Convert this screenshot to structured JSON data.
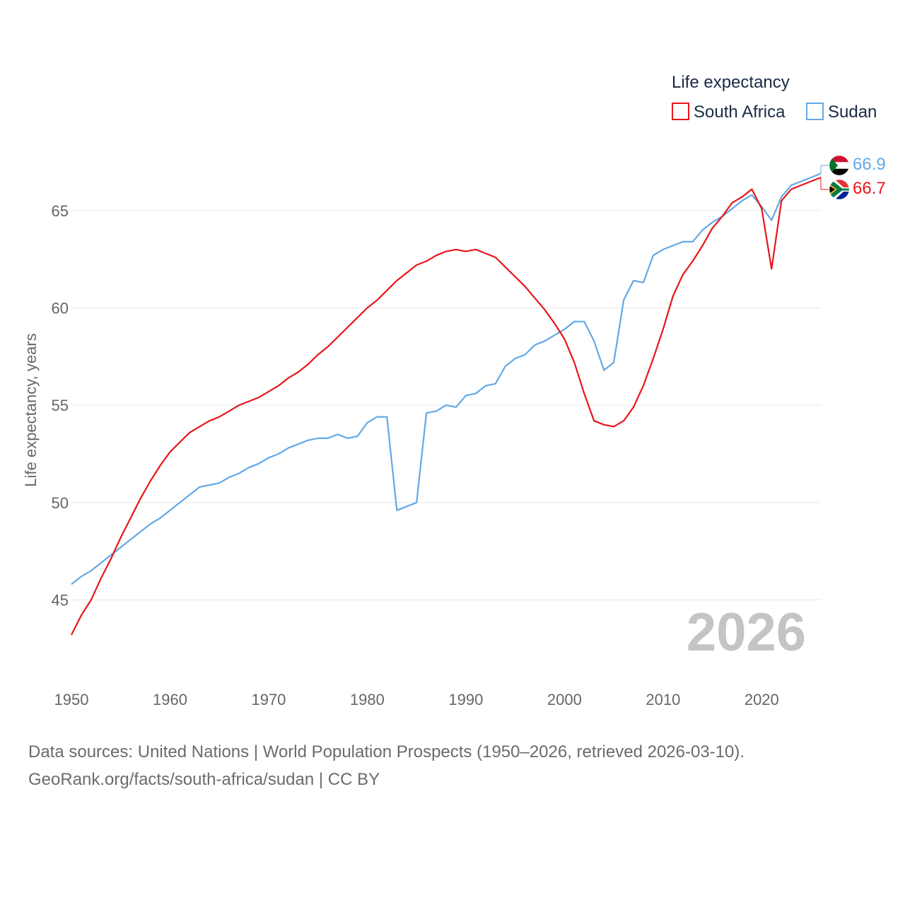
{
  "chart_data": {
    "type": "line",
    "legend_title": "Life expectancy",
    "ylabel": "Life expectancy, years",
    "xlabel": "",
    "xlim": [
      1950,
      2026
    ],
    "ylim": [
      42.4,
      67.9
    ],
    "x_ticks": [
      1950,
      1960,
      1970,
      1980,
      1990,
      2000,
      2010,
      2020
    ],
    "y_ticks": [
      45,
      50,
      55,
      60,
      65
    ],
    "grid": true,
    "legend_position": "top-right",
    "year_watermark": "2026",
    "series": [
      {
        "name": "South Africa",
        "color": "#e8151b",
        "end_label": "66.7",
        "x": [
          1950,
          1951,
          1952,
          1953,
          1954,
          1955,
          1956,
          1957,
          1958,
          1959,
          1960,
          1961,
          1962,
          1963,
          1964,
          1965,
          1966,
          1967,
          1968,
          1969,
          1970,
          1971,
          1972,
          1973,
          1974,
          1975,
          1976,
          1977,
          1978,
          1979,
          1980,
          1981,
          1982,
          1983,
          1984,
          1985,
          1986,
          1987,
          1988,
          1989,
          1990,
          1991,
          1992,
          1993,
          1994,
          1995,
          1996,
          1997,
          1998,
          1999,
          2000,
          2001,
          2002,
          2003,
          2004,
          2005,
          2006,
          2007,
          2008,
          2009,
          2010,
          2011,
          2012,
          2013,
          2014,
          2015,
          2016,
          2017,
          2018,
          2019,
          2020,
          2021,
          2022,
          2023,
          2024,
          2025,
          2026
        ],
        "values": [
          43.2,
          44.2,
          45.0,
          46.1,
          47.1,
          48.2,
          49.2,
          50.2,
          51.1,
          51.9,
          52.6,
          53.1,
          53.6,
          53.9,
          54.2,
          54.4,
          54.7,
          55.0,
          55.2,
          55.4,
          55.7,
          56.0,
          56.4,
          56.7,
          57.1,
          57.6,
          58.0,
          58.5,
          59.0,
          59.5,
          60.0,
          60.4,
          60.9,
          61.4,
          61.8,
          62.2,
          62.4,
          62.7,
          62.9,
          63.0,
          62.9,
          63.0,
          62.8,
          62.6,
          62.1,
          61.6,
          61.1,
          60.5,
          59.9,
          59.2,
          58.4,
          57.2,
          55.6,
          54.2,
          54.0,
          53.9,
          54.2,
          54.9,
          56.0,
          57.4,
          58.9,
          60.6,
          61.7,
          62.4,
          63.2,
          64.1,
          64.7,
          65.4,
          65.7,
          66.1,
          65.1,
          62.0,
          65.5,
          66.1,
          66.3,
          66.5,
          66.7
        ]
      },
      {
        "name": "Sudan",
        "color": "#63a9e6",
        "end_label": "66.9",
        "x": [
          1950,
          1951,
          1952,
          1953,
          1954,
          1955,
          1956,
          1957,
          1958,
          1959,
          1960,
          1961,
          1962,
          1963,
          1964,
          1965,
          1966,
          1967,
          1968,
          1969,
          1970,
          1971,
          1972,
          1973,
          1974,
          1975,
          1976,
          1977,
          1978,
          1979,
          1980,
          1981,
          1982,
          1983,
          1984,
          1985,
          1986,
          1987,
          1988,
          1989,
          1990,
          1991,
          1992,
          1993,
          1994,
          1995,
          1996,
          1997,
          1998,
          1999,
          2000,
          2001,
          2002,
          2003,
          2004,
          2005,
          2006,
          2007,
          2008,
          2009,
          2010,
          2011,
          2012,
          2013,
          2014,
          2015,
          2016,
          2017,
          2018,
          2019,
          2020,
          2021,
          2022,
          2023,
          2024,
          2025,
          2026
        ],
        "values": [
          45.8,
          46.2,
          46.5,
          46.9,
          47.3,
          47.7,
          48.1,
          48.5,
          48.9,
          49.2,
          49.6,
          50.0,
          50.4,
          50.8,
          50.9,
          51.0,
          51.3,
          51.5,
          51.8,
          52.0,
          52.3,
          52.5,
          52.8,
          53.0,
          53.2,
          53.3,
          53.3,
          53.5,
          53.3,
          53.4,
          54.1,
          54.4,
          54.4,
          49.6,
          49.8,
          50.0,
          54.6,
          54.7,
          55.0,
          54.9,
          55.5,
          55.6,
          56.0,
          56.1,
          57.0,
          57.4,
          57.6,
          58.1,
          58.3,
          58.6,
          58.9,
          59.3,
          59.3,
          58.3,
          56.8,
          57.2,
          60.4,
          61.4,
          61.3,
          62.7,
          63.0,
          63.2,
          63.4,
          63.4,
          64.0,
          64.4,
          64.7,
          65.1,
          65.5,
          65.8,
          65.2,
          64.5,
          65.7,
          66.3,
          66.5,
          66.7,
          66.9
        ]
      }
    ]
  },
  "footer": {
    "line1": "Data sources: United Nations | World Population Prospects (1950–2026, retrieved 2026-03-10).",
    "line2": "GeoRank.org/facts/south-africa/sudan | CC BY"
  }
}
